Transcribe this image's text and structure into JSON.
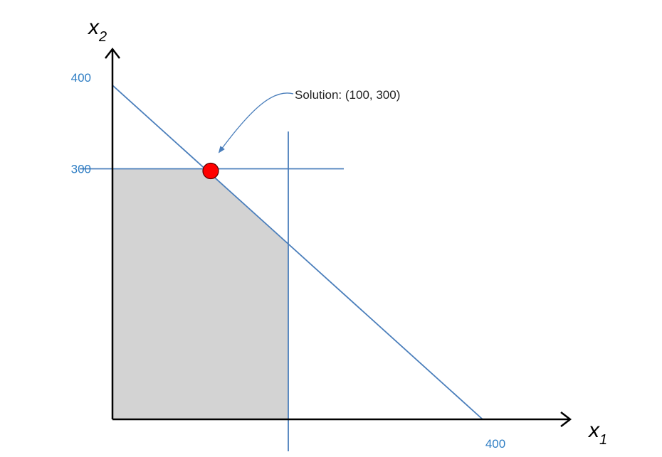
{
  "chart_data": {
    "type": "line",
    "xlabel": {
      "variable": "x",
      "subscript": "1"
    },
    "ylabel": {
      "variable": "x",
      "subscript": "2"
    },
    "xlim": [
      0,
      400
    ],
    "ylim": [
      0,
      400
    ],
    "x_ticks": [
      "400"
    ],
    "y_ticks": [
      "400",
      "300"
    ],
    "constraints": [
      {
        "kind": "line",
        "points": [
          [
            0,
            400
          ],
          [
            400,
            0
          ]
        ]
      },
      {
        "kind": "horizontal",
        "y": 300
      },
      {
        "kind": "vertical",
        "x": 190
      }
    ],
    "feasible_region": [
      [
        0,
        0
      ],
      [
        0,
        300
      ],
      [
        100,
        300
      ],
      [
        190,
        210
      ],
      [
        190,
        0
      ]
    ],
    "solution": {
      "x": 100,
      "y": 300,
      "label": "Solution: (100, 300)"
    },
    "colors": {
      "lines": "#4a7ebb",
      "ticks": "#2f7ec4",
      "region": "#d3d3d3",
      "solution": "#ff0000",
      "axes": "#000000"
    },
    "grid": false
  }
}
